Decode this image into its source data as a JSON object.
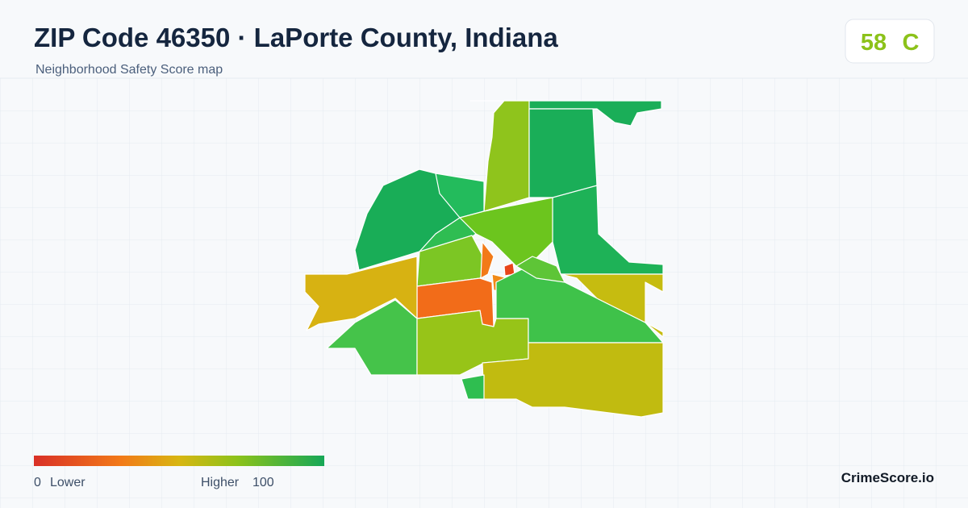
{
  "header": {
    "title": "ZIP Code 46350 · LaPorte County, Indiana",
    "subtitle": "Neighborhood Safety Score map"
  },
  "score": {
    "value": 58,
    "grade": "C"
  },
  "legend": {
    "min": 0,
    "min_label": "Lower",
    "max_label": "Higher",
    "max": 100
  },
  "brand": "CrimeScore.io"
}
